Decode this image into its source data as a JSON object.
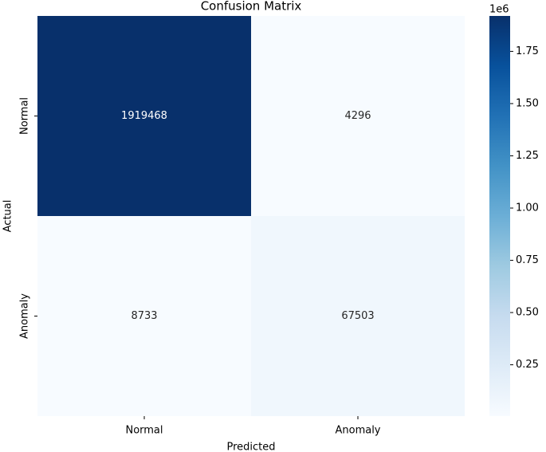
{
  "chart_data": {
    "type": "heatmap",
    "title": "Confusion Matrix",
    "x_label": "Predicted",
    "y_label": "Actual",
    "x_categories": [
      "Normal",
      "Anomaly"
    ],
    "y_categories": [
      "Normal",
      "Anomaly"
    ],
    "values": [
      [
        1919468,
        4296
      ],
      [
        8733,
        67503
      ]
    ],
    "colormap": [
      "#f7fbff",
      "#deebf7",
      "#c6dbef",
      "#9ecae1",
      "#6baed6",
      "#4292c6",
      "#2171b5",
      "#08519c",
      "#08306b"
    ],
    "clim": [
      4296,
      1919468
    ],
    "colorbar_offset": "1e6",
    "cticks": [
      {
        "value": 250000,
        "label": "0.25"
      },
      {
        "value": 500000,
        "label": "0.50"
      },
      {
        "value": 750000,
        "label": "0.75"
      },
      {
        "value": 1000000,
        "label": "1.00"
      },
      {
        "value": 1250000,
        "label": "1.25"
      },
      {
        "value": 1500000,
        "label": "1.50"
      },
      {
        "value": 1750000,
        "label": "1.75"
      }
    ]
  }
}
